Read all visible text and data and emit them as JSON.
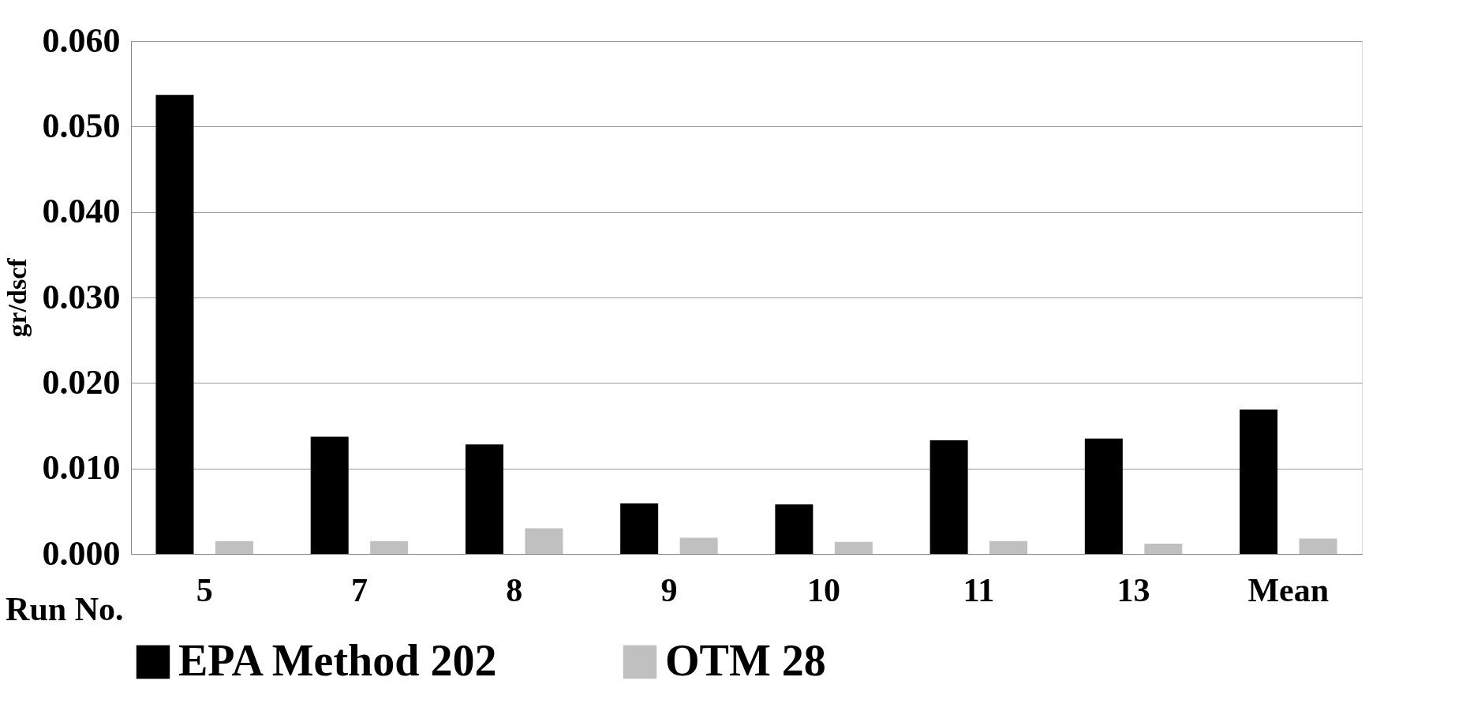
{
  "chart_data": {
    "type": "bar",
    "ylabel": "gr/dscf",
    "xlabel": "Run No.",
    "categories": [
      "5",
      "7",
      "8",
      "9",
      "10",
      "11",
      "13",
      "Mean"
    ],
    "series": [
      {
        "name": "EPA Method 202",
        "color": "#000000",
        "values": [
          0.0537,
          0.0137,
          0.0128,
          0.0059,
          0.0058,
          0.0133,
          0.0135,
          0.0169
        ]
      },
      {
        "name": "OTM 28",
        "color": "#c0c0c0",
        "values": [
          0.0015,
          0.0015,
          0.003,
          0.0019,
          0.0014,
          0.0015,
          0.0012,
          0.0018
        ]
      }
    ],
    "ylim": [
      0,
      0.06
    ],
    "yticks": [
      {
        "value": 0,
        "label": "0.000"
      },
      {
        "value": 0.01,
        "label": "0.010"
      },
      {
        "value": 0.02,
        "label": "0.020"
      },
      {
        "value": 0.03,
        "label": "0.030"
      },
      {
        "value": 0.04,
        "label": "0.040"
      },
      {
        "value": 0.05,
        "label": "0.050"
      },
      {
        "value": 0.06,
        "label": "0.060"
      }
    ],
    "grid": "y",
    "legend": "bottom"
  }
}
